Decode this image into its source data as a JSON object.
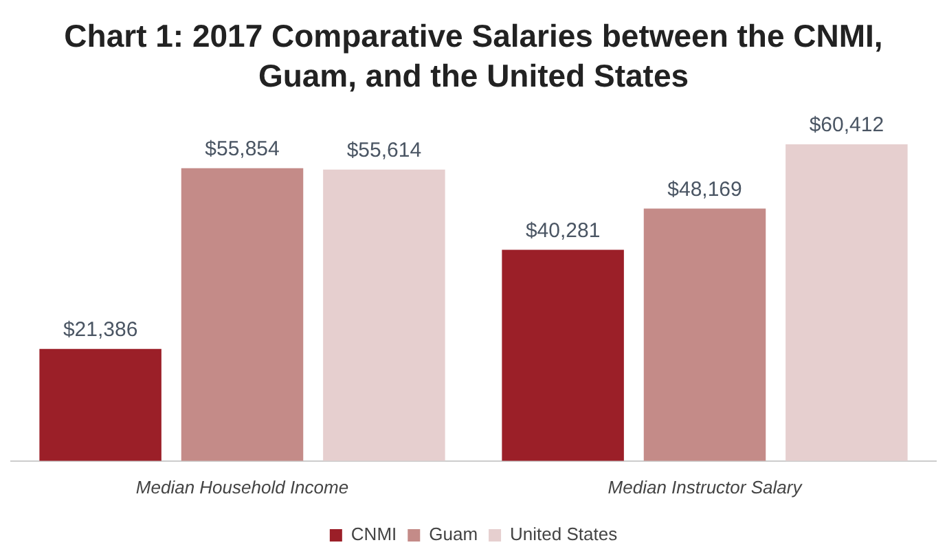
{
  "chart_data": {
    "type": "bar",
    "title": "Chart 1: 2017 Comparative Salaries between the CNMI, Guam, and the United States",
    "categories": [
      "Median Household Income",
      "Median Instructor Salary"
    ],
    "series": [
      {
        "name": "CNMI",
        "color": "#9b1f28",
        "values": [
          21386,
          40281
        ],
        "value_labels": [
          "$21,386",
          "$40,281"
        ]
      },
      {
        "name": "Guam",
        "color": "#c48b88",
        "values": [
          55854,
          48169
        ],
        "value_labels": [
          "$55,854",
          "$48,169"
        ]
      },
      {
        "name": "United States",
        "color": "#e6cfcf",
        "values": [
          55614,
          60412
        ],
        "value_labels": [
          "$55,614",
          "$60,412"
        ]
      }
    ],
    "legend": "bottom",
    "grid": false
  }
}
